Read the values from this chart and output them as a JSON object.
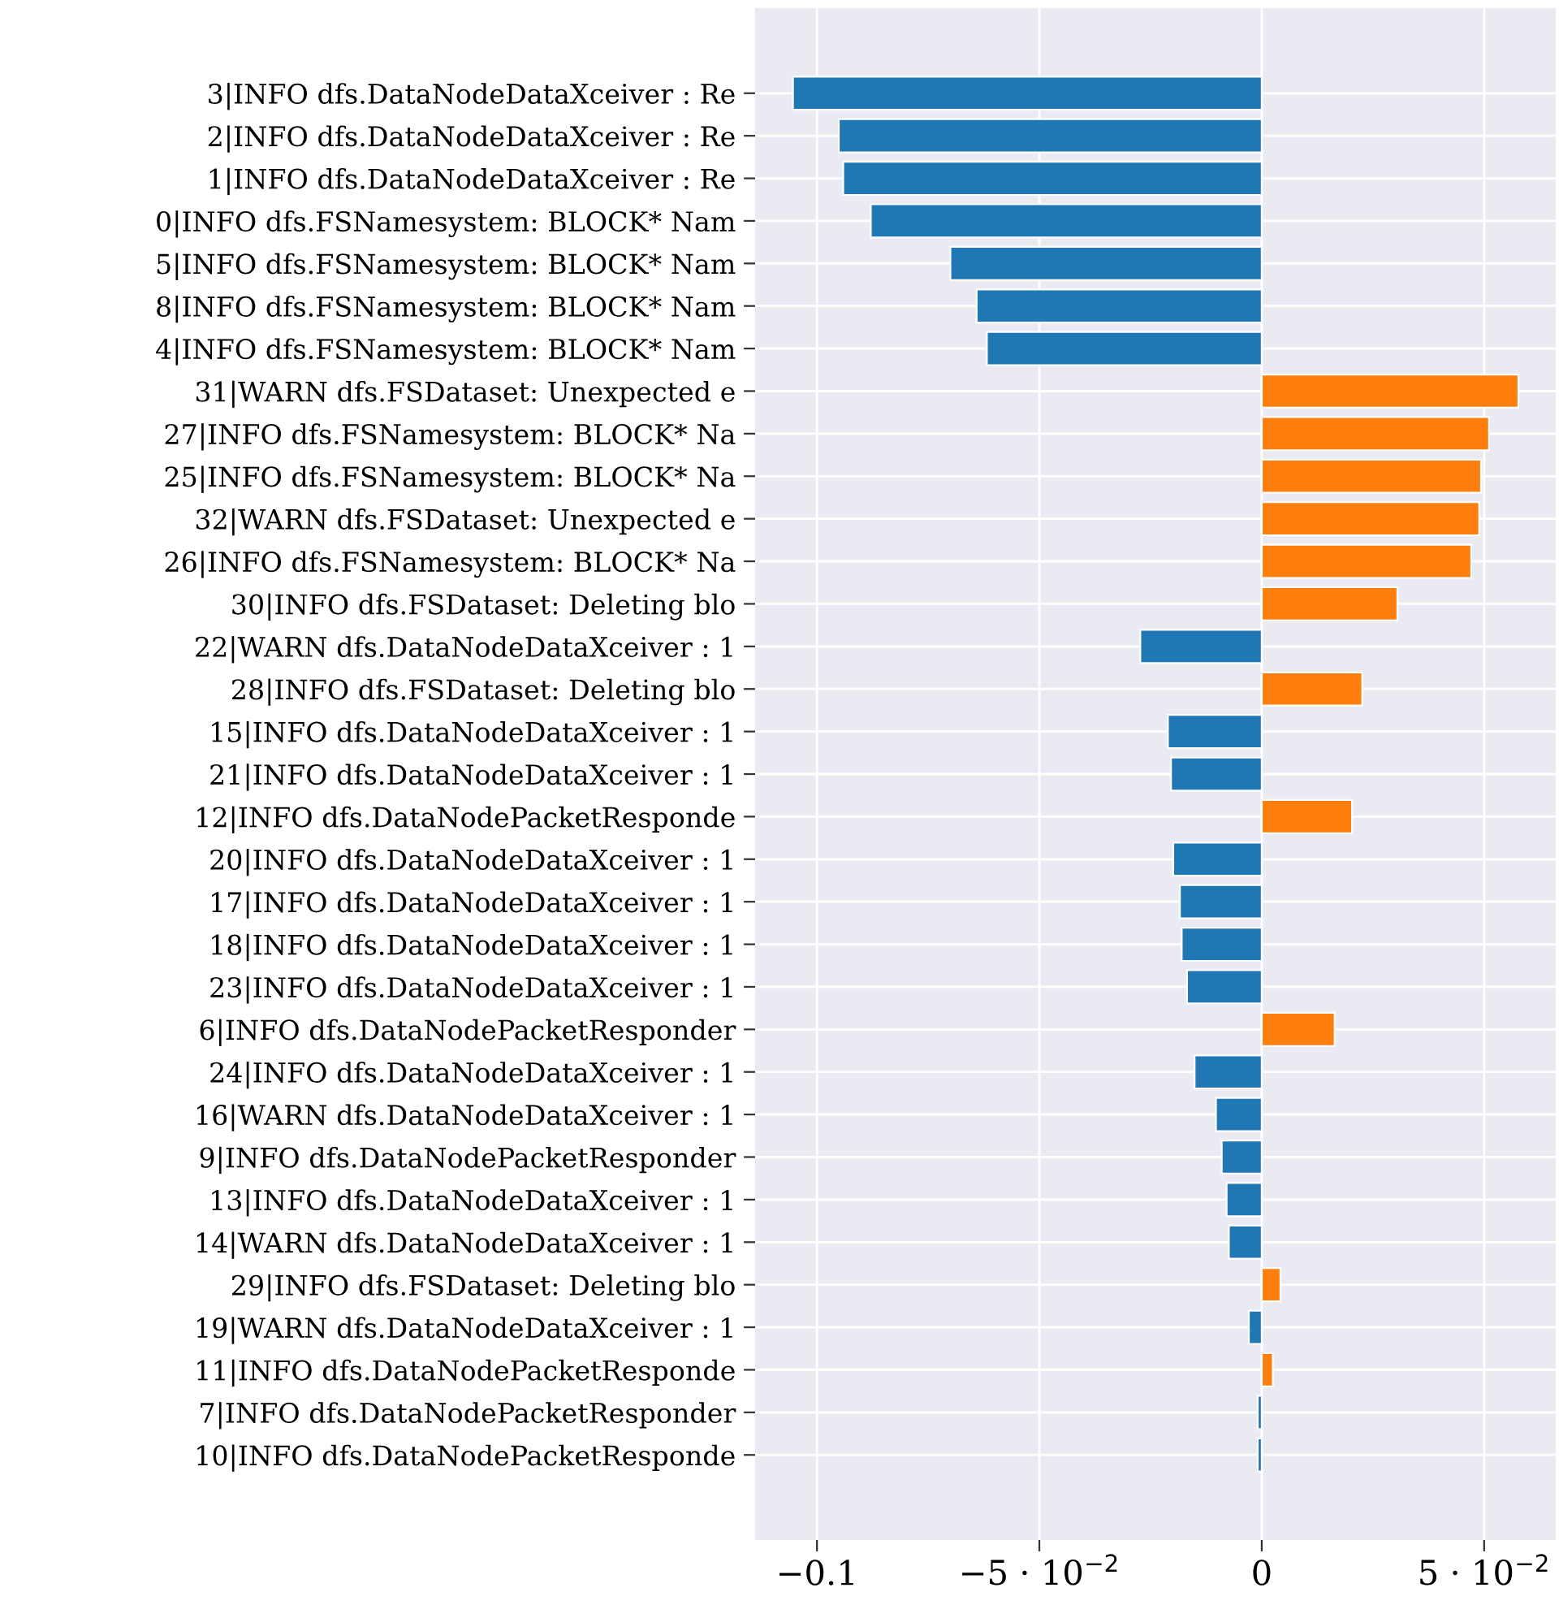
{
  "chart_data": {
    "type": "bar",
    "orientation": "horizontal",
    "grid": true,
    "categories": [
      "3|INFO dfs.DataNodeDataXceiver : Re",
      "2|INFO dfs.DataNodeDataXceiver : Re",
      "1|INFO dfs.DataNodeDataXceiver : Re",
      "0|INFO dfs.FSNamesystem: BLOCK* Nam",
      "5|INFO dfs.FSNamesystem: BLOCK* Nam",
      "8|INFO dfs.FSNamesystem: BLOCK* Nam",
      "4|INFO dfs.FSNamesystem: BLOCK* Nam",
      "31|WARN dfs.FSDataset: Unexpected e",
      "27|INFO dfs.FSNamesystem: BLOCK* Na",
      "25|INFO dfs.FSNamesystem: BLOCK* Na",
      "32|WARN dfs.FSDataset: Unexpected e",
      "26|INFO dfs.FSNamesystem: BLOCK* Na",
      "30|INFO dfs.FSDataset: Deleting blo",
      "22|WARN dfs.DataNodeDataXceiver : 1",
      "28|INFO dfs.FSDataset: Deleting blo",
      "15|INFO dfs.DataNodeDataXceiver : 1",
      "21|INFO dfs.DataNodeDataXceiver : 1",
      "12|INFO dfs.DataNodePacketResponde",
      "20|INFO dfs.DataNodeDataXceiver : 1",
      "17|INFO dfs.DataNodeDataXceiver : 1",
      "18|INFO dfs.DataNodeDataXceiver : 1",
      "23|INFO dfs.DataNodeDataXceiver : 1",
      "6|INFO dfs.DataNodePacketResponder",
      "24|INFO dfs.DataNodeDataXceiver : 1",
      "16|WARN dfs.DataNodeDataXceiver : 1",
      "9|INFO dfs.DataNodePacketResponder",
      "13|INFO dfs.DataNodeDataXceiver : 1",
      "14|WARN dfs.DataNodeDataXceiver : 1",
      "29|INFO dfs.FSDataset: Deleting blo",
      "19|WARN dfs.DataNodeDataXceiver : 1",
      "11|INFO dfs.DataNodePacketResponde",
      "7|INFO dfs.DataNodePacketResponder",
      "10|INFO dfs.DataNodePacketResponde"
    ],
    "values": [
      -0.1054,
      -0.0951,
      -0.0941,
      -0.0879,
      -0.07,
      -0.0641,
      -0.0618,
      0.0577,
      0.0511,
      0.0493,
      0.0489,
      0.0471,
      0.0305,
      -0.0273,
      0.0226,
      -0.0211,
      -0.0204,
      0.0203,
      -0.0199,
      -0.0184,
      -0.018,
      -0.0168,
      0.0164,
      -0.0151,
      -0.0103,
      -0.009,
      -0.0079,
      -0.0074,
      0.0042,
      -0.0029,
      0.0025,
      -0.0009,
      -0.0009
    ],
    "colors": [
      "#1f77b4",
      "#1f77b4",
      "#1f77b4",
      "#1f77b4",
      "#1f77b4",
      "#1f77b4",
      "#1f77b4",
      "#ff7f0e",
      "#ff7f0e",
      "#ff7f0e",
      "#ff7f0e",
      "#ff7f0e",
      "#ff7f0e",
      "#1f77b4",
      "#ff7f0e",
      "#1f77b4",
      "#1f77b4",
      "#ff7f0e",
      "#1f77b4",
      "#1f77b4",
      "#1f77b4",
      "#1f77b4",
      "#ff7f0e",
      "#1f77b4",
      "#1f77b4",
      "#1f77b4",
      "#1f77b4",
      "#1f77b4",
      "#ff7f0e",
      "#1f77b4",
      "#ff7f0e",
      "#1f77b4",
      "#1f77b4"
    ],
    "xlim": [
      -0.1139,
      0.0661
    ],
    "xticks": [
      {
        "value": -0.1,
        "label": "−0.1"
      },
      {
        "value": -0.05,
        "label": "−5 · 10$^{−2}$"
      },
      0,
      {
        "value": 0.05,
        "label": "5 · 10$^{−2}$"
      }
    ]
  }
}
